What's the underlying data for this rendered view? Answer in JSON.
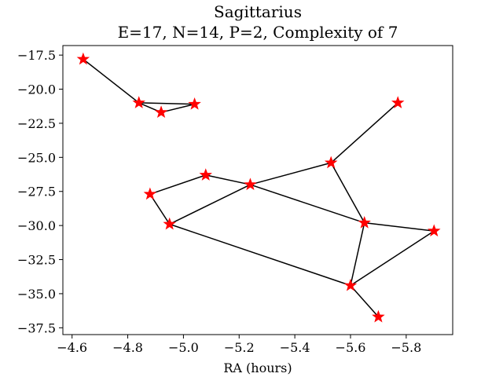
{
  "chart_data": {
    "type": "scatter",
    "title_line1": "Sagittarius",
    "title_line2": "E=17, N=14, P=2, Complexity of 7",
    "xlabel": "RA (hours)",
    "ylabel": "",
    "x_inverted": true,
    "xlim": [
      -4.567,
      -5.967
    ],
    "ylim": [
      -38.0,
      -16.8
    ],
    "x_ticks": [
      -4.6,
      -4.8,
      -5.0,
      -5.2,
      -5.4,
      -5.6,
      -5.8
    ],
    "x_tick_labels": [
      "−4.6",
      "−4.8",
      "−5.0",
      "−5.2",
      "−5.4",
      "−5.6",
      "−5.8"
    ],
    "y_ticks": [
      -17.5,
      -20.0,
      -22.5,
      -25.0,
      -27.5,
      -30.0,
      -32.5,
      -35.0,
      -37.5
    ],
    "y_tick_labels": [
      "−17.5",
      "−20.0",
      "−22.5",
      "−25.0",
      "−27.5",
      "−30.0",
      "−32.5",
      "−35.0",
      "−37.5"
    ],
    "grid": false,
    "marker": "star",
    "marker_color": "#ff0000",
    "edge_color": "#000000",
    "stars": [
      {
        "ra": -4.64,
        "dec": -17.8
      },
      {
        "ra": -4.84,
        "dec": -21.0
      },
      {
        "ra": -4.92,
        "dec": -21.7
      },
      {
        "ra": -5.04,
        "dec": -21.1
      },
      {
        "ra": -5.77,
        "dec": -21.0
      },
      {
        "ra": -5.53,
        "dec": -25.4
      },
      {
        "ra": -5.08,
        "dec": -26.3
      },
      {
        "ra": -5.24,
        "dec": -27.0
      },
      {
        "ra": -4.88,
        "dec": -27.7
      },
      {
        "ra": -4.95,
        "dec": -29.9
      },
      {
        "ra": -5.65,
        "dec": -29.8
      },
      {
        "ra": -5.9,
        "dec": -30.4
      },
      {
        "ra": -5.6,
        "dec": -34.4
      },
      {
        "ra": -5.7,
        "dec": -36.7
      }
    ],
    "edges": [
      [
        0,
        1
      ],
      [
        1,
        2
      ],
      [
        2,
        3
      ],
      [
        1,
        3
      ],
      [
        4,
        5
      ],
      [
        5,
        10
      ],
      [
        5,
        7
      ],
      [
        6,
        7
      ],
      [
        6,
        8
      ],
      [
        8,
        9
      ],
      [
        9,
        7
      ],
      [
        7,
        10
      ],
      [
        9,
        12
      ],
      [
        10,
        12
      ],
      [
        10,
        11
      ],
      [
        11,
        12
      ],
      [
        12,
        13
      ]
    ]
  }
}
